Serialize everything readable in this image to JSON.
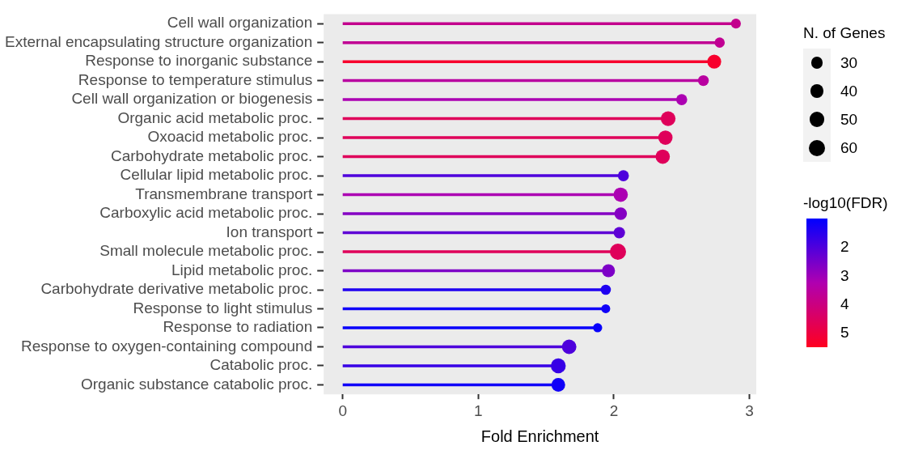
{
  "chart_data": {
    "type": "lollipop",
    "orientation": "horizontal",
    "xlabel": "Fold Enrichment",
    "legend_title": "N. of Genes",
    "clabel": "-log10(FDR)",
    "grid": false,
    "categories": [
      "Cell wall organization",
      "External encapsulating structure organization",
      "Response to inorganic substance",
      "Response to temperature stimulus",
      "Cell wall organization or biogenesis",
      "Organic acid metabolic proc.",
      "Oxoacid metabolic proc.",
      "Carbohydrate metabolic proc.",
      "Cellular lipid metabolic proc.",
      "Transmembrane transport",
      "Carboxylic acid metabolic proc.",
      "Ion transport",
      "Small molecule metabolic proc.",
      "Lipid metabolic proc.",
      "Carbohydrate derivative metabolic proc.",
      "Response to light stimulus",
      "Response to radiation",
      "Response to oxygen-containing compound",
      "Catabolic proc.",
      "Organic substance catabolic proc."
    ],
    "values": [
      2.9,
      2.78,
      2.74,
      2.66,
      2.5,
      2.4,
      2.38,
      2.36,
      2.07,
      2.05,
      2.05,
      2.04,
      2.03,
      1.96,
      1.94,
      1.94,
      1.88,
      1.67,
      1.59,
      1.59
    ],
    "sizes": [
      22,
      24,
      44,
      27,
      28,
      50,
      47,
      47,
      28,
      47,
      36,
      30,
      60,
      39,
      24,
      18,
      19,
      48,
      51,
      43
    ],
    "size_legend": [
      30,
      40,
      50,
      60
    ],
    "cvalues": [
      3.8,
      3.7,
      5.3,
      3.5,
      3.2,
      4.6,
      4.6,
      4.6,
      2.0,
      3.2,
      2.7,
      2.2,
      4.6,
      2.6,
      1.4,
      1.2,
      1.1,
      2.0,
      1.7,
      1.2
    ],
    "clim": [
      1.0,
      5.5
    ],
    "cticks": [
      2,
      3,
      4,
      5
    ],
    "xlim": [
      -0.14,
      3.05
    ],
    "xticks": [
      0,
      1,
      2,
      3
    ]
  }
}
